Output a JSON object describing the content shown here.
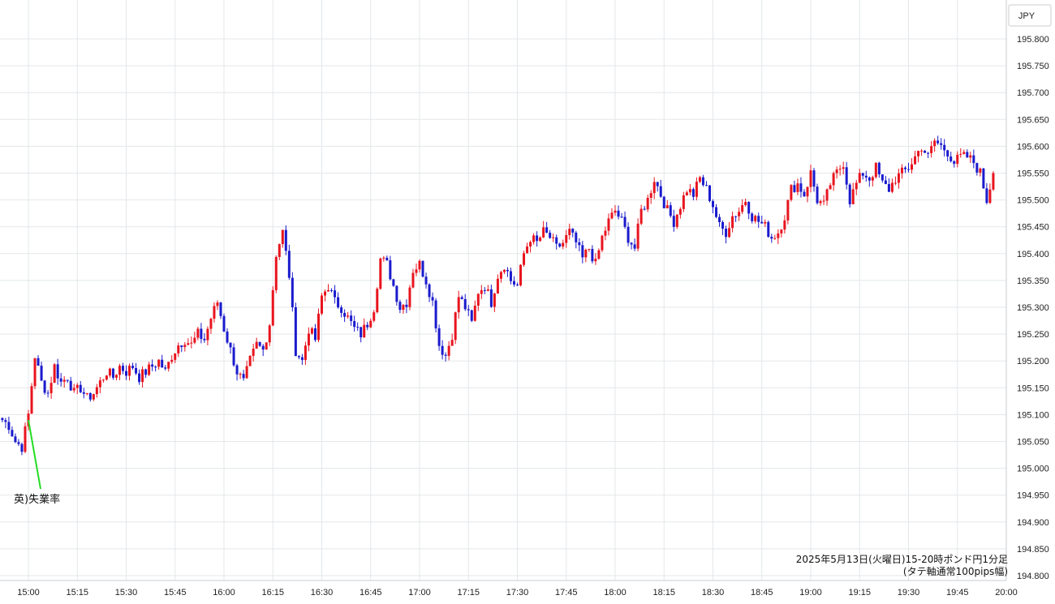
{
  "chart_data": {
    "type": "candlestick",
    "currency_label": "JPY",
    "caption_line1": "2025年5月13日(火曜日)15-20時ポンド円1分足",
    "caption_line2": "(タテ軸通常100pips幅)",
    "ylim": [
      194.8,
      195.85
    ],
    "y_ticks": [
      "195.800",
      "195.750",
      "195.700",
      "195.650",
      "195.600",
      "195.550",
      "195.500",
      "195.450",
      "195.400",
      "195.350",
      "195.300",
      "195.250",
      "195.200",
      "195.150",
      "195.100",
      "195.050",
      "195.000",
      "194.950",
      "194.900",
      "194.850",
      "194.800"
    ],
    "x_ticks": [
      "15:00",
      "15:15",
      "15:30",
      "15:45",
      "16:00",
      "16:15",
      "16:30",
      "16:45",
      "17:00",
      "17:15",
      "17:30",
      "17:45",
      "18:00",
      "18:15",
      "18:30",
      "18:45",
      "19:00",
      "19:15",
      "19:30",
      "19:45",
      "20:00"
    ],
    "up_color": "#e8141e",
    "down_color": "#1a1acd",
    "annotation": {
      "label": "英)失業率",
      "time": "15:00",
      "line_color": "#22dd22"
    },
    "series_close_path": [
      [
        "14:52",
        195.09
      ],
      [
        "14:54",
        195.08
      ],
      [
        "14:56",
        195.05
      ],
      [
        "14:58",
        195.04
      ],
      [
        "15:00",
        195.1
      ],
      [
        "15:02",
        195.21
      ],
      [
        "15:04",
        195.16
      ],
      [
        "15:06",
        195.14
      ],
      [
        "15:08",
        195.19
      ],
      [
        "15:10",
        195.16
      ],
      [
        "15:12",
        195.17
      ],
      [
        "15:14",
        195.14
      ],
      [
        "15:16",
        195.15
      ],
      [
        "15:18",
        195.13
      ],
      [
        "15:20",
        195.14
      ],
      [
        "15:22",
        195.16
      ],
      [
        "15:24",
        195.18
      ],
      [
        "15:26",
        195.17
      ],
      [
        "15:28",
        195.19
      ],
      [
        "15:30",
        195.18
      ],
      [
        "15:32",
        195.19
      ],
      [
        "15:34",
        195.17
      ],
      [
        "15:36",
        195.18
      ],
      [
        "15:38",
        195.19
      ],
      [
        "15:40",
        195.2
      ],
      [
        "15:42",
        195.18
      ],
      [
        "15:44",
        195.21
      ],
      [
        "15:46",
        195.23
      ],
      [
        "15:48",
        195.24
      ],
      [
        "15:50",
        195.23
      ],
      [
        "15:52",
        195.25
      ],
      [
        "15:54",
        195.24
      ],
      [
        "15:56",
        195.28
      ],
      [
        "15:58",
        195.31
      ],
      [
        "16:00",
        195.26
      ],
      [
        "16:02",
        195.22
      ],
      [
        "16:04",
        195.18
      ],
      [
        "16:06",
        195.16
      ],
      [
        "16:08",
        195.2
      ],
      [
        "16:10",
        195.23
      ],
      [
        "16:12",
        195.22
      ],
      [
        "16:14",
        195.27
      ],
      [
        "16:16",
        195.4
      ],
      [
        "16:18",
        195.44
      ],
      [
        "16:20",
        195.36
      ],
      [
        "16:22",
        195.22
      ],
      [
        "16:24",
        195.2
      ],
      [
        "16:26",
        195.26
      ],
      [
        "16:28",
        195.24
      ],
      [
        "16:30",
        195.32
      ],
      [
        "16:32",
        195.34
      ],
      [
        "16:34",
        195.31
      ],
      [
        "16:36",
        195.3
      ],
      [
        "16:38",
        195.28
      ],
      [
        "16:40",
        195.26
      ],
      [
        "16:42",
        195.25
      ],
      [
        "16:44",
        195.27
      ],
      [
        "16:46",
        195.3
      ],
      [
        "16:48",
        195.39
      ],
      [
        "16:50",
        195.38
      ],
      [
        "16:52",
        195.34
      ],
      [
        "16:54",
        195.3
      ],
      [
        "16:56",
        195.31
      ],
      [
        "16:58",
        195.37
      ],
      [
        "17:00",
        195.38
      ],
      [
        "17:02",
        195.35
      ],
      [
        "17:04",
        195.31
      ],
      [
        "17:06",
        195.23
      ],
      [
        "17:08",
        195.21
      ],
      [
        "17:10",
        195.25
      ],
      [
        "17:12",
        195.32
      ],
      [
        "17:14",
        195.3
      ],
      [
        "17:16",
        195.27
      ],
      [
        "17:18",
        195.33
      ],
      [
        "17:20",
        195.34
      ],
      [
        "17:22",
        195.31
      ],
      [
        "17:24",
        195.36
      ],
      [
        "17:26",
        195.38
      ],
      [
        "17:28",
        195.35
      ],
      [
        "17:30",
        195.34
      ],
      [
        "17:32",
        195.4
      ],
      [
        "17:34",
        195.43
      ],
      [
        "17:36",
        195.42
      ],
      [
        "17:38",
        195.44
      ],
      [
        "17:40",
        195.43
      ],
      [
        "17:42",
        195.41
      ],
      [
        "17:44",
        195.42
      ],
      [
        "17:46",
        195.44
      ],
      [
        "17:48",
        195.42
      ],
      [
        "17:50",
        195.39
      ],
      [
        "17:52",
        195.41
      ],
      [
        "17:54",
        195.38
      ],
      [
        "17:56",
        195.43
      ],
      [
        "17:58",
        195.46
      ],
      [
        "18:00",
        195.48
      ],
      [
        "18:02",
        195.46
      ],
      [
        "18:04",
        195.43
      ],
      [
        "18:06",
        195.41
      ],
      [
        "18:08",
        195.48
      ],
      [
        "18:10",
        195.5
      ],
      [
        "18:12",
        195.54
      ],
      [
        "18:14",
        195.51
      ],
      [
        "18:16",
        195.48
      ],
      [
        "18:18",
        195.46
      ],
      [
        "18:20",
        195.49
      ],
      [
        "18:22",
        195.52
      ],
      [
        "18:24",
        195.51
      ],
      [
        "18:26",
        195.54
      ],
      [
        "18:28",
        195.52
      ],
      [
        "18:30",
        195.49
      ],
      [
        "18:32",
        195.45
      ],
      [
        "18:34",
        195.44
      ],
      [
        "18:36",
        195.47
      ],
      [
        "18:38",
        195.48
      ],
      [
        "18:40",
        195.5
      ],
      [
        "18:42",
        195.47
      ],
      [
        "18:44",
        195.46
      ],
      [
        "18:46",
        195.45
      ],
      [
        "18:48",
        195.43
      ],
      [
        "18:50",
        195.44
      ],
      [
        "18:52",
        195.47
      ],
      [
        "18:54",
        195.52
      ],
      [
        "18:56",
        195.53
      ],
      [
        "18:58",
        195.51
      ],
      [
        "19:00",
        195.55
      ],
      [
        "19:02",
        195.5
      ],
      [
        "19:04",
        195.49
      ],
      [
        "19:06",
        195.53
      ],
      [
        "19:08",
        195.55
      ],
      [
        "19:10",
        195.57
      ],
      [
        "19:12",
        195.5
      ],
      [
        "19:14",
        195.53
      ],
      [
        "19:16",
        195.55
      ],
      [
        "19:18",
        195.54
      ],
      [
        "19:20",
        195.56
      ],
      [
        "19:22",
        195.53
      ],
      [
        "19:24",
        195.52
      ],
      [
        "19:26",
        195.54
      ],
      [
        "19:28",
        195.55
      ],
      [
        "19:30",
        195.56
      ],
      [
        "19:32",
        195.58
      ],
      [
        "19:34",
        195.6
      ],
      [
        "19:36",
        195.58
      ],
      [
        "19:38",
        195.61
      ],
      [
        "19:40",
        195.6
      ],
      [
        "19:42",
        195.59
      ],
      [
        "19:44",
        195.57
      ],
      [
        "19:46",
        195.58
      ],
      [
        "19:48",
        195.58
      ],
      [
        "19:50",
        195.57
      ],
      [
        "19:52",
        195.55
      ],
      [
        "19:54",
        195.5
      ],
      [
        "19:56",
        195.55
      ]
    ]
  }
}
